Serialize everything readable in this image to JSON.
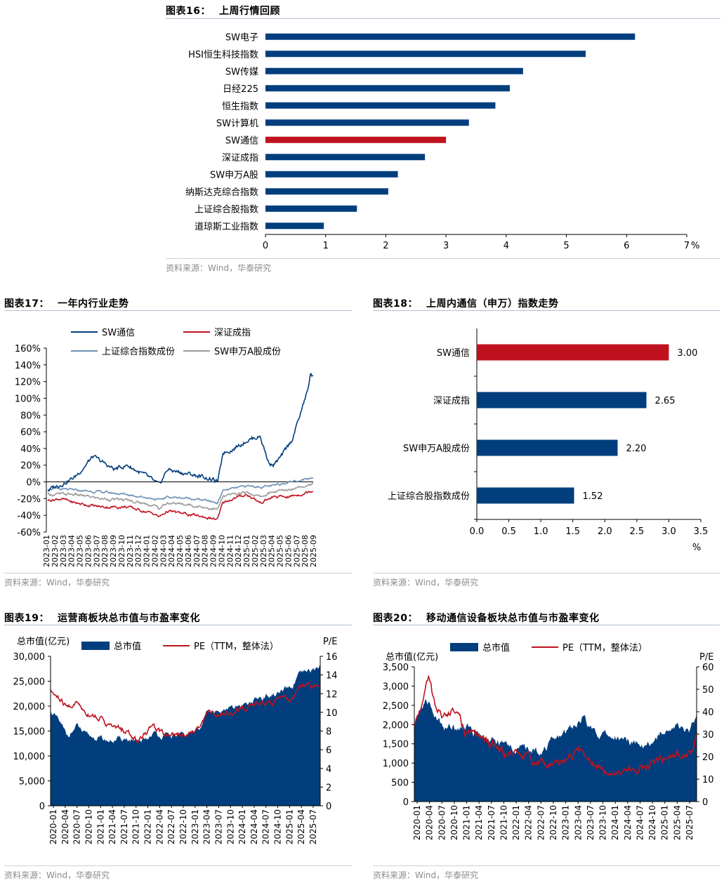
{
  "colors": {
    "navy": "#023e7d",
    "red": "#c0121e",
    "steel": "#6e8fb5",
    "gray": "#9b9b9b",
    "axis": "#000000"
  },
  "source_text": "资料来源：Wind，华泰研究",
  "fig16": {
    "number": "图表16：",
    "title": "上周行情回顾",
    "chart_data": {
      "type": "bar",
      "orientation": "horizontal",
      "categories": [
        "SW电子",
        "HSI恒生科技指数",
        "SW传媒",
        "日经225",
        "恒生指数",
        "SW计算机",
        "SW通信",
        "深证成指",
        "SW申万A股",
        "纳斯达克综合指数",
        "上证综合股指数",
        "道琼斯工业指数"
      ],
      "values": [
        6.14,
        5.32,
        4.28,
        4.06,
        3.82,
        3.38,
        3.0,
        2.65,
        2.2,
        2.04,
        1.52,
        0.97
      ],
      "highlight": "SW通信",
      "xlim": [
        0,
        7
      ],
      "xticks": [
        "0",
        "1",
        "2",
        "3",
        "4",
        "5",
        "6",
        "7"
      ],
      "unit": "%"
    }
  },
  "fig17": {
    "number": "图表17：",
    "title": "一年内行业走势",
    "chart_data": {
      "type": "line",
      "series_names": [
        "SW通信",
        "深证成指",
        "上证综合指数成份",
        "SW申万A股成份"
      ],
      "y_ticks": [
        "160%",
        "140%",
        "120%",
        "100%",
        "80%",
        "60%",
        "40%",
        "20%",
        "0%",
        "-20%",
        "-40%",
        "-60%"
      ],
      "ylim": [
        -60,
        160
      ],
      "x_ticks": [
        "2023-01",
        "2023-02",
        "2023-03",
        "2023-04",
        "2023-05",
        "2023-06",
        "2023-07",
        "2023-08",
        "2023-09",
        "2023-10",
        "2023-11",
        "2023-12",
        "2024-01",
        "2024-02",
        "2024-03",
        "2024-04",
        "2024-05",
        "2024-06",
        "2024-07",
        "2024-08",
        "2024-09",
        "2024-10",
        "2024-11",
        "2024-12",
        "2025-01",
        "2025-02",
        "2025-03",
        "2025-04",
        "2025-05",
        "2025-06",
        "2025-07",
        "2025-08",
        "2025-09"
      ],
      "anchors": {
        "SW通信": [
          [
            0,
            -10
          ],
          [
            0.1,
            5
          ],
          [
            0.17,
            30
          ],
          [
            0.25,
            15
          ],
          [
            0.3,
            20
          ],
          [
            0.38,
            5
          ],
          [
            0.42,
            -5
          ],
          [
            0.45,
            15
          ],
          [
            0.52,
            10
          ],
          [
            0.6,
            5
          ],
          [
            0.64,
            0
          ],
          [
            0.65,
            15
          ],
          [
            0.66,
            35
          ],
          [
            0.7,
            40
          ],
          [
            0.75,
            50
          ],
          [
            0.8,
            55
          ],
          [
            0.83,
            25
          ],
          [
            0.85,
            20
          ],
          [
            0.88,
            30
          ],
          [
            0.92,
            50
          ],
          [
            0.94,
            70
          ],
          [
            0.96,
            90
          ],
          [
            0.98,
            110
          ],
          [
            0.99,
            130
          ],
          [
            1,
            125
          ]
        ],
        "深证成指": [
          [
            0,
            -22
          ],
          [
            0.05,
            -20
          ],
          [
            0.1,
            -25
          ],
          [
            0.2,
            -30
          ],
          [
            0.3,
            -30
          ],
          [
            0.4,
            -38
          ],
          [
            0.42,
            -42
          ],
          [
            0.45,
            -35
          ],
          [
            0.55,
            -40
          ],
          [
            0.64,
            -45
          ],
          [
            0.66,
            -25
          ],
          [
            0.7,
            -20
          ],
          [
            0.75,
            -15
          ],
          [
            0.8,
            -25
          ],
          [
            0.85,
            -18
          ],
          [
            0.9,
            -18
          ],
          [
            0.95,
            -15
          ],
          [
            1,
            -10
          ]
        ],
        "上证综合指数成份": [
          [
            0,
            -8
          ],
          [
            0.1,
            -10
          ],
          [
            0.2,
            -12
          ],
          [
            0.3,
            -15
          ],
          [
            0.4,
            -20
          ],
          [
            0.42,
            -22
          ],
          [
            0.45,
            -18
          ],
          [
            0.55,
            -20
          ],
          [
            0.64,
            -25
          ],
          [
            0.66,
            -10
          ],
          [
            0.7,
            -8
          ],
          [
            0.75,
            -5
          ],
          [
            0.8,
            -6
          ],
          [
            0.85,
            -5
          ],
          [
            0.9,
            0
          ],
          [
            0.95,
            2
          ],
          [
            1,
            5
          ]
        ],
        "SW申万A股成份": [
          [
            0,
            -15
          ],
          [
            0.1,
            -15
          ],
          [
            0.2,
            -20
          ],
          [
            0.3,
            -22
          ],
          [
            0.4,
            -28
          ],
          [
            0.42,
            -32
          ],
          [
            0.45,
            -25
          ],
          [
            0.55,
            -28
          ],
          [
            0.64,
            -33
          ],
          [
            0.66,
            -18
          ],
          [
            0.7,
            -15
          ],
          [
            0.75,
            -12
          ],
          [
            0.8,
            -18
          ],
          [
            0.85,
            -12
          ],
          [
            0.9,
            -10
          ],
          [
            0.95,
            -5
          ],
          [
            1,
            -2
          ]
        ]
      }
    }
  },
  "fig18": {
    "number": "图表18：",
    "title": "上周内通信（申万）指数走势",
    "chart_data": {
      "type": "bar",
      "orientation": "horizontal",
      "categories": [
        "SW通信",
        "深证成指",
        "SW申万A股成份",
        "上证综合股指数成份"
      ],
      "values": [
        3.0,
        2.65,
        2.2,
        1.52
      ],
      "value_labels": [
        "3.00",
        "2.65",
        "2.20",
        "1.52"
      ],
      "highlight": "SW通信",
      "xlim": [
        0,
        3.5
      ],
      "xticks": [
        "0.0",
        "0.5",
        "1.0",
        "1.5",
        "2.0",
        "2.5",
        "3.0",
        "3.5"
      ],
      "unit": "%"
    }
  },
  "fig19": {
    "number": "图表19：",
    "title": "运营商板块总市值与市盈率变化",
    "chart_data": {
      "type": "area+line",
      "left_axis_label": "总市值(亿元)",
      "right_axis_label": "P/E",
      "legend": [
        "总市值",
        "PE（TTM，整体法）"
      ],
      "left_ticks": [
        "30,000",
        "25,000",
        "20,000",
        "15,000",
        "10,000",
        "5,000",
        "0"
      ],
      "right_ticks": [
        "16",
        "14",
        "12",
        "10",
        "8",
        "6",
        "4",
        "2",
        "0"
      ],
      "left_ylim": [
        0,
        30000
      ],
      "right_ylim": [
        0,
        16
      ],
      "x_ticks": [
        "2020-01",
        "2020-04",
        "2020-07",
        "2020-10",
        "2021-01",
        "2021-04",
        "2021-07",
        "2021-10",
        "2022-01",
        "2022-04",
        "2022-07",
        "2022-10",
        "2023-01",
        "2023-04",
        "2023-07",
        "2023-10",
        "2024-01",
        "2024-04",
        "2024-07",
        "2024-10",
        "2025-01",
        "2025-04",
        "2025-07"
      ],
      "anchors": {
        "总市值": [
          [
            0,
            19000
          ],
          [
            0.03,
            17000
          ],
          [
            0.06,
            14000
          ],
          [
            0.1,
            16000
          ],
          [
            0.13,
            14000
          ],
          [
            0.18,
            13500
          ],
          [
            0.22,
            13000
          ],
          [
            0.28,
            13500
          ],
          [
            0.32,
            12500
          ],
          [
            0.36,
            13500
          ],
          [
            0.38,
            14500
          ],
          [
            0.42,
            14000
          ],
          [
            0.5,
            14000
          ],
          [
            0.55,
            15500
          ],
          [
            0.58,
            19000
          ],
          [
            0.62,
            18500
          ],
          [
            0.68,
            19500
          ],
          [
            0.72,
            20500
          ],
          [
            0.75,
            21000
          ],
          [
            0.8,
            22000
          ],
          [
            0.85,
            22500
          ],
          [
            0.9,
            24000
          ],
          [
            0.92,
            26000
          ],
          [
            0.96,
            27000
          ],
          [
            1,
            28000
          ]
        ],
        "PE": [
          [
            0,
            12.2
          ],
          [
            0.03,
            11.5
          ],
          [
            0.06,
            10.5
          ],
          [
            0.1,
            11
          ],
          [
            0.13,
            10
          ],
          [
            0.18,
            9.5
          ],
          [
            0.22,
            8.5
          ],
          [
            0.28,
            8
          ],
          [
            0.32,
            7
          ],
          [
            0.36,
            8
          ],
          [
            0.38,
            8.5
          ],
          [
            0.42,
            7.8
          ],
          [
            0.5,
            7.7
          ],
          [
            0.55,
            8.2
          ],
          [
            0.58,
            10
          ],
          [
            0.62,
            9.8
          ],
          [
            0.68,
            10.2
          ],
          [
            0.72,
            10.5
          ],
          [
            0.75,
            10.8
          ],
          [
            0.8,
            11
          ],
          [
            0.85,
            11.2
          ],
          [
            0.9,
            11.5
          ],
          [
            0.92,
            12.5
          ],
          [
            0.96,
            13
          ],
          [
            1,
            12.5
          ]
        ]
      }
    }
  },
  "fig20": {
    "number": "图表20：",
    "title": "移动通信设备板块总市值与市盈率变化",
    "chart_data": {
      "type": "area+line",
      "left_axis_label": "总市值(亿元)",
      "right_axis_label": "P/E",
      "legend": [
        "总市值",
        "PE（TTM，整体法）"
      ],
      "left_ticks": [
        "3,500",
        "3,000",
        "2,500",
        "2,000",
        "1,500",
        "1,000",
        "500",
        "0"
      ],
      "right_ticks": [
        "60",
        "50",
        "40",
        "30",
        "20",
        "10",
        "0"
      ],
      "left_ylim": [
        0,
        3500
      ],
      "right_ylim": [
        0,
        60
      ],
      "x_ticks": [
        "2020-01",
        "2020-04",
        "2020-07",
        "2020-10",
        "2021-01",
        "2021-04",
        "2021-07",
        "2021-10",
        "2022-01",
        "2022-04",
        "2022-07",
        "2022-10",
        "2023-01",
        "2023-04",
        "2023-07",
        "2023-10",
        "2024-01",
        "2024-04",
        "2024-07",
        "2024-10",
        "2025-01",
        "2025-04",
        "2025-07"
      ],
      "anchors": {
        "总市值": [
          [
            0,
            2000
          ],
          [
            0.03,
            2500
          ],
          [
            0.05,
            2600
          ],
          [
            0.08,
            2100
          ],
          [
            0.12,
            1900
          ],
          [
            0.16,
            2000
          ],
          [
            0.2,
            1850
          ],
          [
            0.25,
            1700
          ],
          [
            0.3,
            1550
          ],
          [
            0.35,
            1400
          ],
          [
            0.4,
            1350
          ],
          [
            0.45,
            1350
          ],
          [
            0.5,
            1600
          ],
          [
            0.55,
            1900
          ],
          [
            0.6,
            2200
          ],
          [
            0.63,
            1800
          ],
          [
            0.68,
            1700
          ],
          [
            0.72,
            1650
          ],
          [
            0.76,
            1600
          ],
          [
            0.8,
            1500
          ],
          [
            0.85,
            1550
          ],
          [
            0.9,
            2000
          ],
          [
            0.95,
            1850
          ],
          [
            0.98,
            1900
          ],
          [
            1,
            2300
          ]
        ],
        "PE": [
          [
            0,
            33
          ],
          [
            0.03,
            45
          ],
          [
            0.05,
            55
          ],
          [
            0.08,
            40
          ],
          [
            0.12,
            38
          ],
          [
            0.15,
            43
          ],
          [
            0.18,
            30
          ],
          [
            0.22,
            30
          ],
          [
            0.27,
            25
          ],
          [
            0.32,
            22
          ],
          [
            0.38,
            21
          ],
          [
            0.42,
            18
          ],
          [
            0.5,
            16
          ],
          [
            0.55,
            20
          ],
          [
            0.6,
            23
          ],
          [
            0.63,
            18
          ],
          [
            0.68,
            15
          ],
          [
            0.72,
            14
          ],
          [
            0.76,
            14
          ],
          [
            0.8,
            15
          ],
          [
            0.85,
            18
          ],
          [
            0.9,
            20
          ],
          [
            0.95,
            21
          ],
          [
            0.98,
            22
          ],
          [
            1,
            30
          ]
        ]
      }
    }
  }
}
